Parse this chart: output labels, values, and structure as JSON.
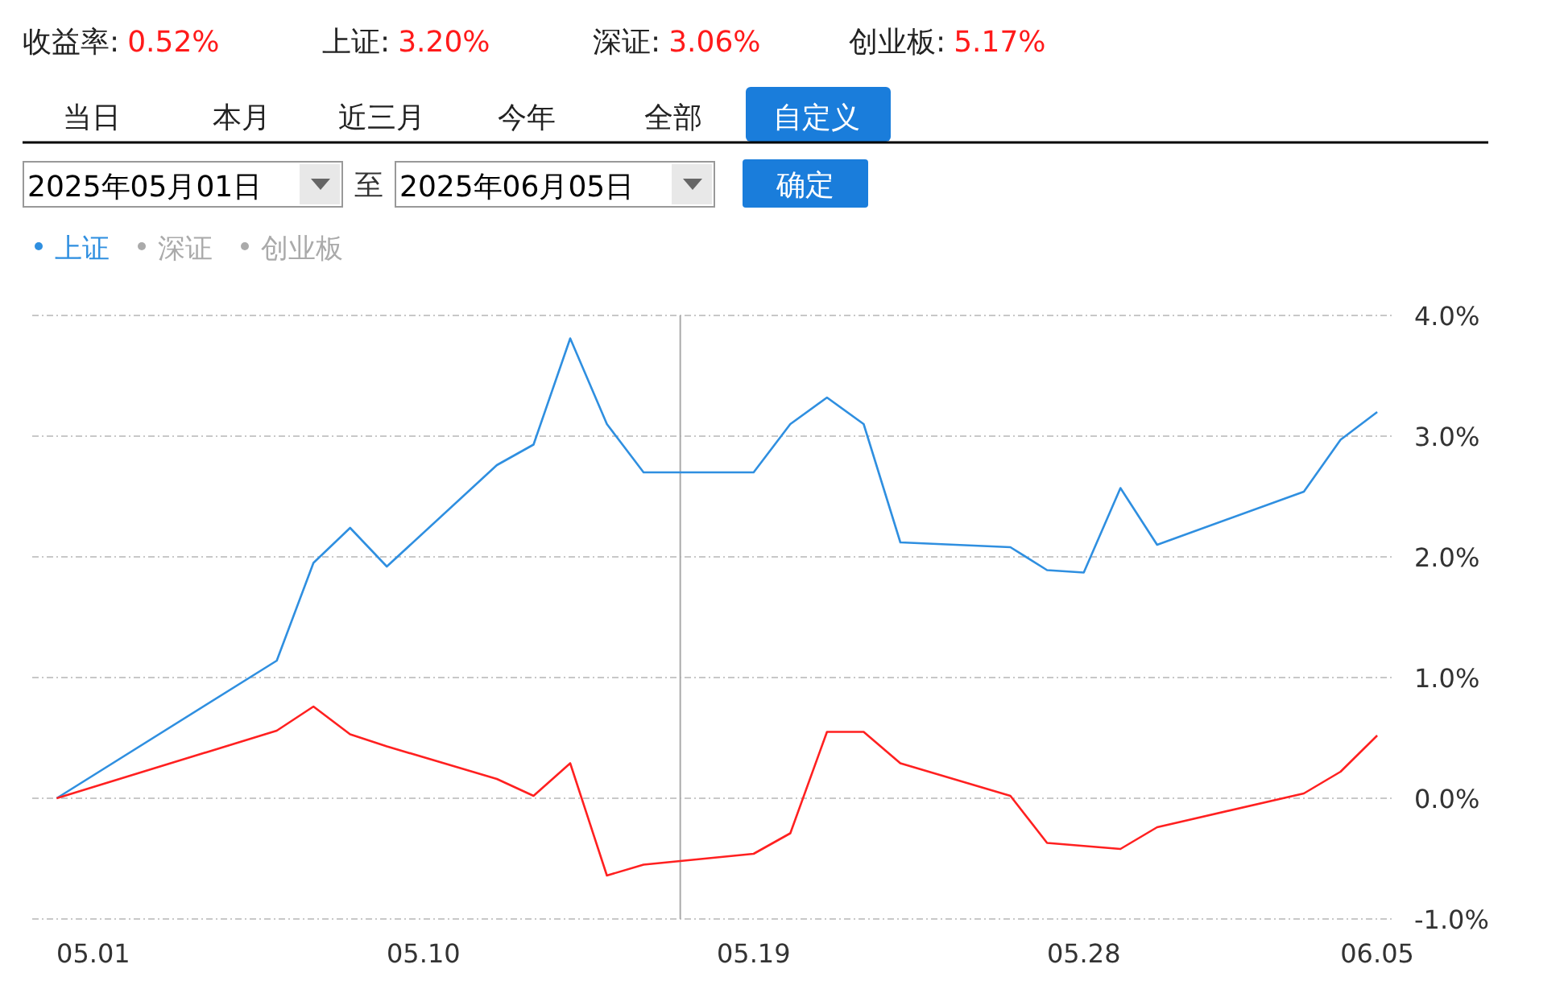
{
  "chart_data": {
    "type": "line",
    "annotations": [
      "收益率:",
      "0.52%",
      "上证:",
      "3.20%",
      "深证:",
      "3.06%",
      "创业板:",
      "5.17%",
      "当日",
      "本月",
      "近三月",
      "今年",
      "全部",
      "自定义",
      "2025年05月01日",
      "至",
      "2025年06月05日",
      "确定"
    ],
    "x": [
      "2025-04-30",
      "2025-05-06",
      "2025-05-07",
      "2025-05-08",
      "2025-05-09",
      "2025-05-12",
      "2025-05-13",
      "2025-05-14",
      "2025-05-15",
      "2025-05-16",
      "2025-05-19",
      "2025-05-20",
      "2025-05-21",
      "2025-05-22",
      "2025-05-23",
      "2025-05-26",
      "2025-05-27",
      "2025-05-28",
      "2025-05-29",
      "2025-05-30",
      "2025-06-03",
      "2025-06-04",
      "2025-06-05"
    ],
    "series": [
      {
        "name": "上证",
        "color": "#2f8fe0",
        "values": [
          0,
          1.14,
          1.95,
          2.24,
          1.92,
          2.76,
          2.93,
          3.81,
          3.1,
          2.7,
          2.7,
          3.1,
          3.32,
          3.1,
          2.12,
          2.08,
          1.89,
          1.87,
          2.57,
          2.1,
          2.54,
          2.97,
          3.2
        ]
      },
      {
        "color": "#ff2020",
        "x": [
          "2025-04-30",
          "2025-05-06",
          "2025-05-07",
          "2025-05-08",
          "2025-05-09",
          "2025-05-12",
          "2025-05-13",
          "2025-05-14",
          "2025-05-15",
          "2025-05-16",
          "2025-05-19",
          "2025-05-20",
          "2025-05-21",
          "2025-05-22",
          "2025-05-23",
          "2025-05-26",
          "2025-05-27",
          "2025-05-29",
          "2025-05-30",
          "2025-06-03",
          "2025-06-04",
          "2025-06-05"
        ],
        "values": [
          0,
          0.56,
          0.76,
          0.53,
          0.43,
          0.16,
          0.02,
          0.29,
          -0.64,
          -0.55,
          -0.46,
          -0.29,
          0.55,
          0.55,
          0.29,
          0.02,
          -0.37,
          -0.42,
          -0.24,
          0.04,
          0.22,
          0.52
        ]
      },
      {
        "name": "深证",
        "color": "#aaaaaa",
        "values": [
          null,
          null,
          null,
          null,
          null,
          null,
          null,
          null,
          null,
          null,
          null,
          null,
          null,
          null,
          null,
          null,
          null,
          null,
          null,
          null,
          null,
          null,
          null
        ]
      },
      {
        "name": "创业板",
        "color": "#aaaaaa",
        "values": [
          null,
          null,
          null,
          null,
          null,
          null,
          null,
          null,
          null,
          null,
          null,
          null,
          null,
          null,
          null,
          null,
          null,
          null,
          null,
          null,
          null,
          null,
          null
        ]
      }
    ],
    "xlim": [
      "2025-04-29T08:00",
      "2025-06-05T10:30"
    ],
    "xticks": [
      {
        "value": "2025-05-01",
        "label": "05.01"
      },
      {
        "value": "2025-05-10",
        "label": "05.10"
      },
      {
        "value": "2025-05-19",
        "label": "05.19"
      },
      {
        "value": "2025-05-28",
        "label": "05.28"
      },
      {
        "value": "2025-06-05",
        "label": "06.05"
      }
    ],
    "ylim": [
      -1,
      4
    ],
    "yticks": [
      {
        "value": 4,
        "label": "4.0%"
      },
      {
        "value": 3,
        "label": "3.0%"
      },
      {
        "value": 2,
        "label": "2.0%"
      },
      {
        "value": 1,
        "label": "1.0%"
      },
      {
        "value": 0,
        "label": "0.0%"
      },
      {
        "value": -1,
        "label": "-1.0%"
      }
    ],
    "ref_lines": [
      {
        "axis": "x",
        "value": "2025-05-17",
        "color": "#aaaaaa"
      }
    ],
    "grid": "y",
    "legend": "top left",
    "marker": "none",
    "line_style": "solid"
  }
}
